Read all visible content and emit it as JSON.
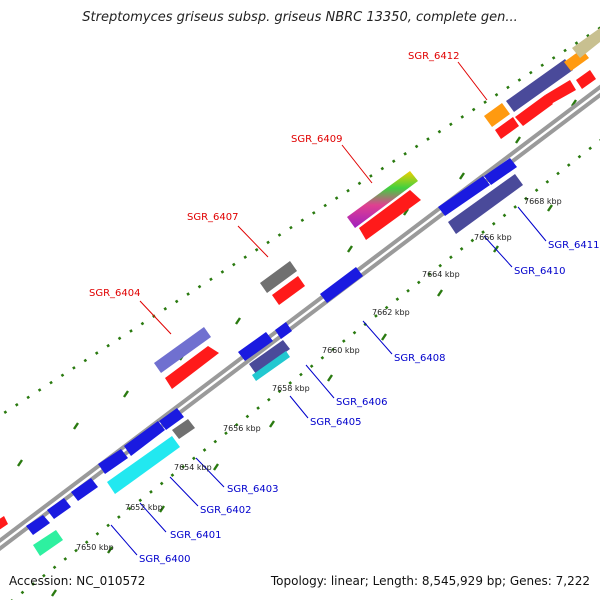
{
  "title": "Streptomyces griseus subsp. griseus NBRC 13350, complete gen...",
  "footer": {
    "accession": "Accession: NC_010572",
    "topology": "Topology: linear; Length: 8,545,929 bp; Genes: 7,222"
  },
  "colors": {
    "backbone": "#9a9a9a",
    "tick": "#2a7a10",
    "forward_label": "#e00000",
    "reverse_label": "#0000cc",
    "cds_forward": "#ff1a1a",
    "cds_reverse": "#1a1ae0",
    "slate": "#4a4a9a",
    "lavender": "#7070d0",
    "gray": "#707070",
    "cyan": "#22e8f0",
    "mint": "#2ef0a0",
    "orange": "#ff9a10",
    "khaki": "#c8c090"
  },
  "kbp_labels": [
    "7650 kbp",
    "7652 kbp",
    "7654 kbp",
    "7656 kbp",
    "7658 kbp",
    "7660 kbp",
    "7662 kbp",
    "7664 kbp",
    "7666 kbp",
    "7668 kbp"
  ],
  "genes_forward": [
    "SGR_6404",
    "SGR_6407",
    "SGR_6409",
    "SGR_6412"
  ],
  "genes_reverse": [
    "SGR_6400",
    "SGR_6401",
    "SGR_6402",
    "SGR_6403",
    "SGR_6405",
    "SGR_6406",
    "SGR_6408",
    "SGR_6410",
    "SGR_6411"
  ]
}
